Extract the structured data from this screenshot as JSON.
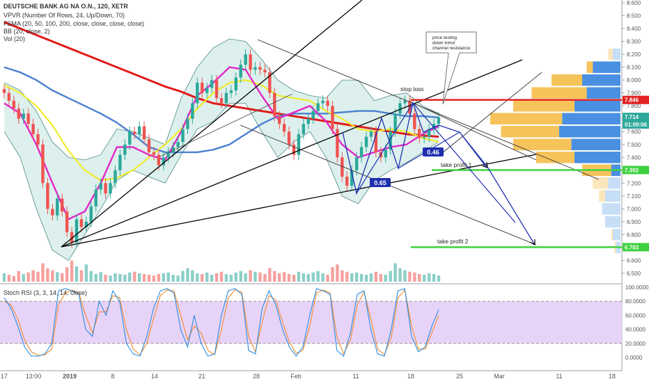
{
  "legend": {
    "symbol": "DEUTSCHE BANK AG NA O.N., 120, XETR",
    "vpvr": "VPVR (Number Of Rows, 24, Up/Down, 70)",
    "fsma": "FSMA (20, 50, 100, 200, close, close, close, close)",
    "bb": "BB (20, close, 2)",
    "vol": "Vol (20)",
    "stoch": "Stoch RSI (3, 3, 14, 14, close)"
  },
  "annotations": {
    "note": [
      "price testing",
      "down trend",
      "channel resistance"
    ],
    "stop_loss": "stop loss",
    "take_profit_1": "take profit 1",
    "take_profit_2": "take profit 2",
    "fib_065": "0.65",
    "fib_046": "0.46"
  },
  "colors": {
    "bb_fill": "#cfe9e6",
    "bb_line": "#4a8a84",
    "sma_red": "#e01b1b",
    "sma_blue": "#4a7fd0",
    "sma_yellow": "#f0ec2a",
    "sma_magenta": "#e327c8",
    "up": "#2ca89a",
    "down": "#ef5350",
    "stop_line": "#e32222",
    "take_line": "#3ed13e",
    "pattern": "#1f2fb0",
    "stoch_bg": "#e8d3f8",
    "stoch_k": "#2a8ce0",
    "stoch_d": "#f08a2a",
    "vp_up": "#4a90e2",
    "vp_up_light": "#c6def6",
    "vp_down": "#f6c35b",
    "vp_down_light": "#fbe6bb"
  },
  "chart_data": [
    {
      "type": "candlestick",
      "y_ticks": [
        "8.600",
        "8.500",
        "8.400",
        "8.300",
        "8.200",
        "8.100",
        "8.000",
        "7.900",
        "7.800",
        "7.700",
        "7.600",
        "7.500",
        "7.400",
        "7.300",
        "7.200",
        "7.100",
        "7.000",
        "6.900",
        "6.800",
        "6.700",
        "6.600",
        "6.500"
      ],
      "x_ticks": [
        "17",
        "13:00",
        "2019",
        "8",
        "14",
        "21",
        "28",
        "Feb",
        "11",
        "18",
        "25",
        "Mar",
        "11",
        "18"
      ],
      "ylim": [
        6.42,
        8.62
      ],
      "price_labels": [
        {
          "label": "7.846",
          "value": 7.846,
          "color": "#e32222"
        },
        {
          "label": "7.714",
          "value": 7.714,
          "color": "#2ca89a"
        },
        {
          "label": "01:09:06",
          "value": 7.655,
          "color": "#2ca89a"
        },
        {
          "label": "7.302",
          "value": 7.302,
          "color": "#3ed13e"
        },
        {
          "label": "6.703",
          "value": 6.703,
          "color": "#3ed13e"
        }
      ],
      "close": [
        7.9,
        7.84,
        7.78,
        7.7,
        7.74,
        7.66,
        7.58,
        7.5,
        7.2,
        7.0,
        6.95,
        7.08,
        6.98,
        6.82,
        6.74,
        6.92,
        6.86,
        6.9,
        7.02,
        7.15,
        7.2,
        7.12,
        7.2,
        7.3,
        7.42,
        7.5,
        7.6,
        7.58,
        7.64,
        7.54,
        7.44,
        7.42,
        7.34,
        7.4,
        7.44,
        7.48,
        7.52,
        7.62,
        7.7,
        7.82,
        7.98,
        7.9,
        7.94,
        8.0,
        7.86,
        7.82,
        7.9,
        7.92,
        8.02,
        8.12,
        8.2,
        8.08,
        8.1,
        8.08,
        8.06,
        7.9,
        7.72,
        7.66,
        7.6,
        7.5,
        7.42,
        7.58,
        7.66,
        7.7,
        7.76,
        7.82,
        7.84,
        7.8,
        7.62,
        7.4,
        7.25,
        7.18,
        7.3,
        7.4,
        7.48,
        7.56,
        7.6,
        7.44,
        7.4,
        7.46,
        7.6,
        7.74,
        7.82,
        7.84,
        7.74,
        7.62,
        7.55,
        7.56,
        7.62,
        7.66,
        7.71
      ],
      "volume": [
        22,
        18,
        15,
        28,
        20,
        24,
        30,
        26,
        48,
        35,
        30,
        25,
        22,
        38,
        55,
        40,
        30,
        45,
        28,
        20,
        25,
        18,
        16,
        22,
        20,
        18,
        24,
        26,
        22,
        20,
        18,
        16,
        20,
        22,
        24,
        18,
        16,
        28,
        35,
        30,
        22,
        20,
        24,
        18,
        22,
        26,
        20,
        18,
        24,
        28,
        22,
        30,
        26,
        24,
        20,
        36,
        28,
        22,
        25,
        20,
        18,
        26,
        22,
        20,
        24,
        28,
        22,
        18,
        38,
        45,
        30,
        26,
        22,
        24,
        20,
        18,
        22,
        26,
        20,
        18,
        28,
        48,
        35,
        30,
        26,
        24,
        20,
        18,
        22,
        20,
        16
      ],
      "sma_red": [
        8.45,
        8.4,
        8.35,
        8.3,
        8.25,
        8.2,
        8.15,
        8.1,
        8.05,
        8.0,
        7.95,
        7.91,
        7.86,
        7.82,
        7.8,
        7.78,
        7.76,
        7.74,
        7.72,
        7.7,
        7.68,
        7.66,
        7.64,
        7.62,
        7.6,
        7.58,
        7.57,
        7.56
      ],
      "sma_blue": [
        8.1,
        8.06,
        8.0,
        7.92,
        7.86,
        7.8,
        7.74,
        7.67,
        7.58,
        7.48,
        7.44,
        7.44,
        7.44,
        7.46,
        7.5,
        7.58,
        7.66,
        7.72,
        7.74,
        7.74,
        7.74,
        7.75,
        7.76,
        7.76,
        7.74,
        7.72,
        7.72,
        7.71
      ],
      "sma_yellow": [
        7.96,
        7.9,
        7.8,
        7.65,
        7.45,
        7.3,
        7.22,
        7.24,
        7.3,
        7.4,
        7.5,
        7.62,
        7.78,
        7.9,
        7.98,
        8.0,
        7.96,
        7.88,
        7.86,
        7.84,
        7.76,
        7.7,
        7.62,
        7.6,
        7.62,
        7.6,
        7.55,
        7.52
      ],
      "sma_magenta": [
        7.82,
        7.74,
        7.5,
        7.2,
        6.92,
        6.98,
        7.2,
        7.48,
        7.48,
        7.42,
        7.38,
        7.6,
        7.88,
        7.98,
        8.1,
        8.08,
        7.88,
        7.7,
        7.75,
        7.8,
        7.68,
        7.5,
        7.4,
        7.44,
        7.48,
        7.5,
        7.58,
        7.64
      ],
      "bb_upper": [
        7.98,
        7.92,
        7.76,
        7.52,
        7.4,
        7.38,
        7.42,
        7.62,
        7.6,
        7.55,
        7.5,
        7.86,
        8.1,
        8.25,
        8.32,
        8.3,
        8.16,
        8.0,
        7.92,
        7.88,
        7.86,
        8.0,
        8.0,
        7.84,
        7.88,
        7.9,
        7.8,
        7.74
      ],
      "bb_lower": [
        7.6,
        7.4,
        7.0,
        6.68,
        6.6,
        6.8,
        7.0,
        7.22,
        7.3,
        7.25,
        7.2,
        7.42,
        7.62,
        7.68,
        7.82,
        7.82,
        7.6,
        7.4,
        7.52,
        7.6,
        7.4,
        7.1,
        7.04,
        7.22,
        7.3,
        7.36,
        7.44,
        7.52
      ]
    },
    {
      "type": "line",
      "title": "Stoch RSI (3, 3, 14, 14, close)",
      "y_ticks": [
        "100.0000",
        "80.0000",
        "60.0000",
        "40.0000",
        "20.0000",
        "0.0000"
      ],
      "ylim": [
        0,
        100
      ],
      "bands": [
        20,
        80
      ],
      "series": [
        {
          "values": [
            85,
            70,
            45,
            15,
            2,
            2,
            5,
            20,
            95,
            98,
            95,
            90,
            40,
            30,
            80,
            60,
            95,
            80,
            20,
            5,
            2,
            30,
            70,
            95,
            98,
            92,
            40,
            15,
            60,
            20,
            2,
            5,
            60,
            95,
            98,
            90,
            10,
            5,
            70,
            95,
            75,
            40,
            15,
            2,
            15,
            60,
            98,
            95,
            90,
            10,
            2,
            35,
            90,
            95,
            40,
            5,
            2,
            40,
            95,
            98,
            30,
            8,
            15,
            45,
            68
          ]
        },
        {
          "values": [
            80,
            75,
            55,
            25,
            8,
            3,
            4,
            12,
            75,
            92,
            96,
            92,
            60,
            35,
            65,
            65,
            88,
            85,
            40,
            12,
            4,
            20,
            55,
            88,
            96,
            95,
            60,
            25,
            45,
            35,
            10,
            4,
            40,
            85,
            96,
            93,
            30,
            8,
            50,
            88,
            82,
            50,
            22,
            6,
            10,
            45,
            92,
            96,
            92,
            30,
            5,
            25,
            75,
            93,
            55,
            12,
            4,
            28,
            85,
            96,
            45,
            12,
            12,
            35,
            60
          ]
        }
      ]
    },
    {
      "type": "bar",
      "title": "VPVR (Number Of Rows, 24, Up/Down, 70)",
      "y_ticks": [
        "8.600",
        "8.500",
        "8.400",
        "8.300",
        "8.200",
        "8.100",
        "8.000",
        "7.900",
        "7.800",
        "7.700",
        "7.600",
        "7.500",
        "7.400",
        "7.300",
        "7.200",
        "7.100",
        "7.000",
        "6.900",
        "6.800",
        "6.700",
        "6.600",
        "6.500"
      ],
      "categories": [
        8.2,
        8.1,
        8.0,
        7.9,
        7.8,
        7.7,
        7.6,
        7.5,
        7.4,
        7.3,
        7.2,
        7.1,
        7.0,
        6.9,
        6.8,
        6.7
      ],
      "series": [
        {
          "values": [
            8,
            22,
            45,
            58,
            70,
            85,
            78,
            70,
            55,
            25,
            18,
            14,
            12,
            10,
            6,
            4
          ]
        },
        {
          "values": [
            5,
            18,
            25,
            22,
            30,
            38,
            40,
            32,
            30,
            6,
            8,
            10,
            12,
            10,
            5,
            3
          ]
        }
      ]
    }
  ]
}
